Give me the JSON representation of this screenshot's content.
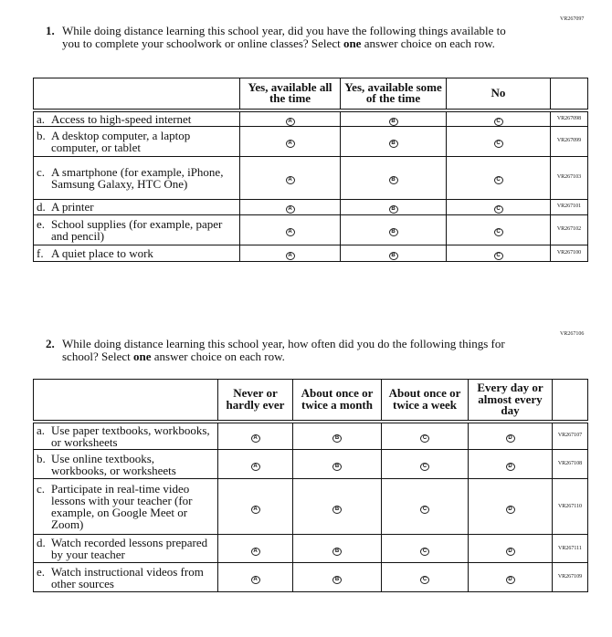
{
  "q1": {
    "code": "VR267097",
    "number": "1.",
    "text_before": "While doing distance learning this school year, did you have the following things available to you to complete your schoolwork or online classes? Select ",
    "emph": "one",
    "text_after": " answer choice on each row.",
    "columns": [
      "Yes, available all the time",
      "Yes, available some of the time",
      "No"
    ],
    "bubbles": [
      "A",
      "B",
      "C"
    ],
    "rows": [
      {
        "letter": "a.",
        "label": "Access to high-speed internet",
        "code": "VR267098"
      },
      {
        "letter": "b.",
        "label": "A desktop computer, a laptop computer, or tablet",
        "code": "VR267099"
      },
      {
        "letter": "c.",
        "label": "A smartphone (for example, iPhone, Samsung Galaxy, HTC One)",
        "code": "VR267103"
      },
      {
        "letter": "d.",
        "label": "A printer",
        "code": "VR267101"
      },
      {
        "letter": "e.",
        "label": "School supplies (for example, paper and pencil)",
        "code": "VR267102"
      },
      {
        "letter": "f.",
        "label": "A quiet place to work",
        "code": "VR267100"
      }
    ]
  },
  "q2": {
    "code": "VR267106",
    "number": "2.",
    "text_before": "While doing distance learning this school year, how often did you do the following things for school? Select ",
    "emph": "one",
    "text_after": " answer choice on each row.",
    "columns": [
      "Never or hardly ever",
      "About once or twice a month",
      "About once or twice a week",
      "Every day or almost every day"
    ],
    "bubbles": [
      "A",
      "B",
      "C",
      "D"
    ],
    "rows": [
      {
        "letter": "a.",
        "label": "Use paper textbooks, workbooks, or worksheets",
        "code": "VR267107"
      },
      {
        "letter": "b.",
        "label": "Use online textbooks, workbooks, or worksheets",
        "code": "VR267108"
      },
      {
        "letter": "c.",
        "label": "Participate in real-time video lessons with your teacher (for example, on Google Meet or Zoom)",
        "code": "VR267110"
      },
      {
        "letter": "d.",
        "label": "Watch recorded lessons prepared by your teacher",
        "code": "VR267111"
      },
      {
        "letter": "e.",
        "label": "Watch instructional videos from other sources",
        "code": "VR267109"
      }
    ]
  }
}
